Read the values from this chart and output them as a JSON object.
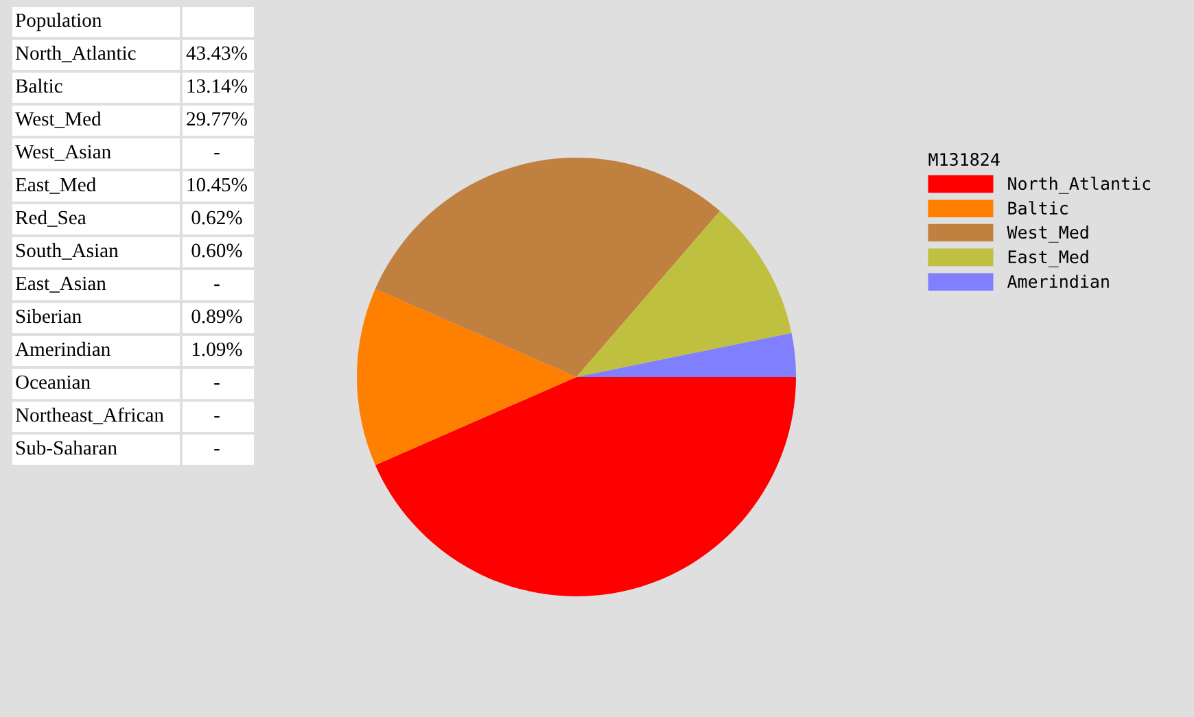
{
  "chart_data": [
    {
      "type": "other",
      "title": "Population",
      "categories": [
        "North_Atlantic",
        "Baltic",
        "West_Med",
        "West_Asian",
        "East_Med",
        "Red_Sea",
        "South_Asian",
        "East_Asian",
        "Siberian",
        "Amerindian",
        "Oceanian",
        "Northeast_African",
        "Sub-Saharan"
      ],
      "value_labels": [
        "43.43%",
        "13.14%",
        "29.77%",
        "-",
        "10.45%",
        "0.62%",
        "0.60%",
        "-",
        "0.89%",
        "1.09%",
        "-",
        "-",
        "-"
      ]
    },
    {
      "type": "pie",
      "legend_title": "M131824",
      "categories": [
        "North_Atlantic",
        "Baltic",
        "West_Med",
        "East_Med",
        "Amerindian"
      ],
      "values": [
        43.43,
        13.14,
        29.77,
        10.45,
        3.21
      ],
      "colors": [
        "#ff0000",
        "#ff8000",
        "#c08040",
        "#c0c040",
        "#8080ff"
      ],
      "legend": "right"
    }
  ]
}
